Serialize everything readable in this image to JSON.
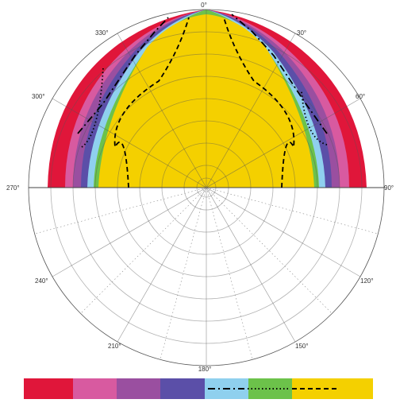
{
  "diagram": {
    "angle_labels": {
      "a0": "0°",
      "a30": "30°",
      "a60": "60°",
      "a90": "90°",
      "a120": "120°",
      "a150": "150°",
      "a180": "180°",
      "a210": "210°",
      "a240": "240°",
      "a270": "270°",
      "a300": "300°",
      "a330": "330°"
    },
    "legend_colors": [
      "#e0163a",
      "#d85aa0",
      "#9a4fa0",
      "#5b4fa8",
      "#8fd0ee",
      "#6cc24a",
      "#f4d000"
    ],
    "zone_colors": {
      "red": "#e0163a",
      "pink": "#d85aa0",
      "purple": "#9a4fa0",
      "blue": "#5b4fa8",
      "light_blue": "#8fd0ee",
      "green": "#6cc24a",
      "yellow": "#f4d000"
    }
  }
}
